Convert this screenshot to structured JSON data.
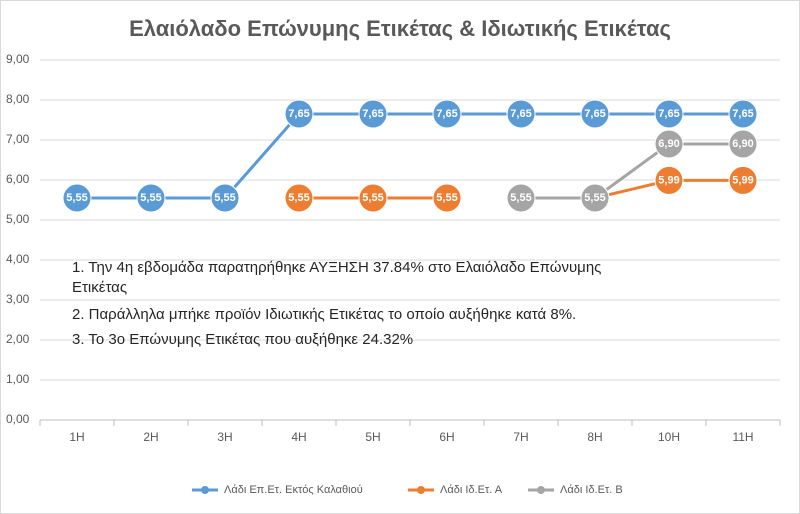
{
  "chart_data": {
    "type": "line",
    "title": "Ελαιόλαδο Επώνυμης Ετικέτας & Ιδιωτικής Ετικέτας",
    "categories": [
      "1H",
      "2H",
      "3H",
      "4H",
      "5H",
      "6H",
      "7H",
      "8H",
      "10H",
      "11H"
    ],
    "series": [
      {
        "name": "Λάδι Επ.Ετ. Εκτός Καλαθιού",
        "color": "#5b9bd5",
        "values": [
          5.55,
          5.55,
          5.55,
          7.65,
          7.65,
          7.65,
          7.65,
          7.65,
          7.65,
          7.65
        ],
        "value_labels": [
          "5,55",
          "5,55",
          "5,55",
          "7,65",
          "7,65",
          "7,65",
          "7,65",
          "7,65",
          "7,65",
          "7,65"
        ]
      },
      {
        "name": "Λάδι Ιδ.Ετ. Α",
        "color": "#ed7d31",
        "values": [
          null,
          null,
          null,
          5.55,
          5.55,
          5.55,
          null,
          5.55,
          5.99,
          5.99
        ],
        "value_labels": [
          null,
          null,
          null,
          "5,55",
          "5,55",
          "5,55",
          null,
          null,
          "5,99",
          "5,99"
        ]
      },
      {
        "name": "Λάδι Ιδ.Ετ. Β",
        "color": "#a5a5a5",
        "values": [
          null,
          null,
          null,
          null,
          null,
          null,
          5.55,
          5.55,
          6.9,
          6.9
        ],
        "value_labels": [
          null,
          null,
          null,
          null,
          null,
          null,
          "5,55",
          "5,55",
          "6,90",
          "6,90"
        ]
      }
    ],
    "ylim": [
      0,
      9
    ],
    "yticks": [
      {
        "value": 0,
        "label": "0,00"
      },
      {
        "value": 1,
        "label": "1,00"
      },
      {
        "value": 2,
        "label": "2,00"
      },
      {
        "value": 3,
        "label": "3,00"
      },
      {
        "value": 4,
        "label": "4,00"
      },
      {
        "value": 5,
        "label": "5,00"
      },
      {
        "value": 6,
        "label": "6,00"
      },
      {
        "value": 7,
        "label": "7,00"
      },
      {
        "value": 8,
        "label": "8,00"
      },
      {
        "value": 9,
        "label": "9,00"
      }
    ],
    "grid": true,
    "legend": "bottom",
    "annotations": [
      "1. Την 4η εβδομάδα παρατηρήθηκε ΑΥΞΗΣΗ 37.84% στο Ελαιόλαδο Επώνυμης",
      "Ετικέτας",
      "2. Παράλληλα μπήκε προϊόν Ιδιωτικής Ετικέτας το οποίο αυξήθηκε κατά 8%.",
      "3. Το 3ο Επώνυμης Ετικέτας που αυξήθηκε 24.32%"
    ]
  }
}
